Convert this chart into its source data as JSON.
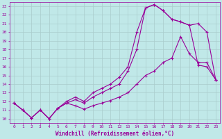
{
  "xlabel": "Windchill (Refroidissement éolien,°C)",
  "xlim": [
    -0.5,
    23.5
  ],
  "ylim": [
    9.5,
    23.5
  ],
  "xticks": [
    0,
    1,
    2,
    3,
    4,
    5,
    6,
    7,
    8,
    9,
    10,
    11,
    12,
    13,
    14,
    15,
    16,
    17,
    18,
    19,
    20,
    21,
    22,
    23
  ],
  "yticks": [
    10,
    11,
    12,
    13,
    14,
    15,
    16,
    17,
    18,
    19,
    20,
    21,
    22,
    23
  ],
  "bg_color": "#c0e8e8",
  "line_color": "#990099",
  "grid_color": "#aacccc",
  "line1_x": [
    0,
    1,
    2,
    3,
    4,
    5,
    6,
    7,
    8,
    9,
    10,
    11,
    12,
    13,
    14,
    15,
    16,
    17,
    18,
    19,
    20,
    21,
    22,
    23
  ],
  "line1_y": [
    11.8,
    11.0,
    10.1,
    11.0,
    10.0,
    11.2,
    11.8,
    11.5,
    11.1,
    11.5,
    11.8,
    12.1,
    12.5,
    13.0,
    14.0,
    15.0,
    15.5,
    16.5,
    17.0,
    19.5,
    17.5,
    16.5,
    16.5,
    14.5
  ],
  "line2_x": [
    0,
    1,
    2,
    3,
    4,
    5,
    6,
    7,
    8,
    9,
    10,
    11,
    12,
    13,
    14,
    15,
    16,
    17,
    18,
    19,
    20,
    21,
    22,
    23
  ],
  "line2_y": [
    11.8,
    11.0,
    10.1,
    11.0,
    10.0,
    11.2,
    11.8,
    12.2,
    11.8,
    12.5,
    13.0,
    13.5,
    14.0,
    15.5,
    18.0,
    22.8,
    23.2,
    22.5,
    21.5,
    21.2,
    20.8,
    21.0,
    20.0,
    14.5
  ],
  "line3_x": [
    0,
    1,
    2,
    3,
    4,
    5,
    6,
    7,
    8,
    9,
    10,
    11,
    12,
    13,
    14,
    15,
    16,
    17,
    18,
    19,
    20,
    21,
    22,
    23
  ],
  "line3_y": [
    11.8,
    11.0,
    10.1,
    11.0,
    10.0,
    11.2,
    12.0,
    12.5,
    12.0,
    13.0,
    13.5,
    14.0,
    14.8,
    16.0,
    20.0,
    22.8,
    23.2,
    22.5,
    21.5,
    21.2,
    20.8,
    16.2,
    16.0,
    14.5
  ],
  "marker": "+",
  "markersize": 3.5,
  "linewidth": 0.8,
  "tick_fontsize": 4.5,
  "xlabel_fontsize": 5.5
}
